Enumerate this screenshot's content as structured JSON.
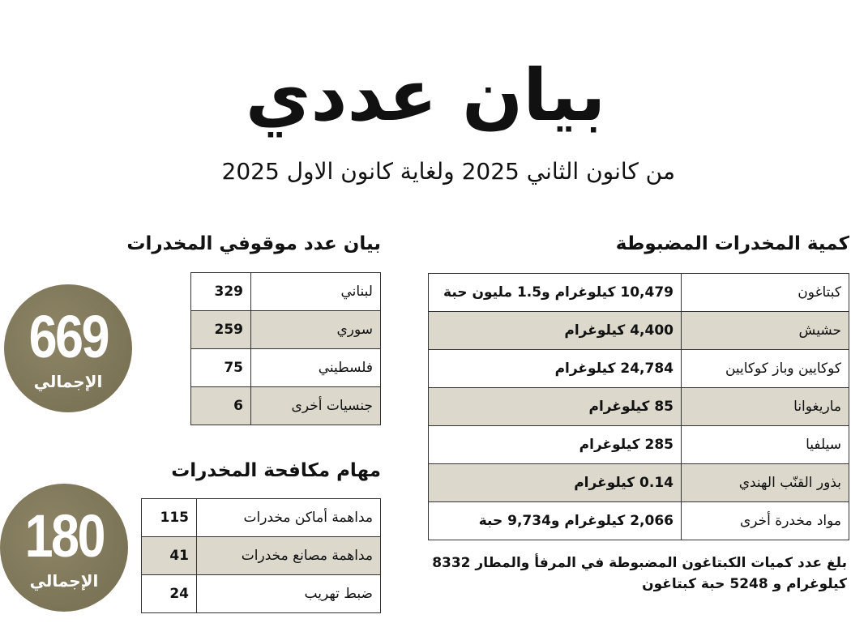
{
  "title": "بيان عددي",
  "subtitle": "من كانون الثاني 2025  ولغاية كانون الاول 2025",
  "colors": {
    "circle": "#7f7759",
    "row_shade": "#dcd9cc"
  },
  "seized": {
    "heading": "كمية المخدرات المضبوطة",
    "rows": [
      {
        "label": "كبتاغون",
        "value": "10,479 كيلوغرام و1.5 مليون حبة"
      },
      {
        "label": "حشيش",
        "value": "4,400 كيلوغرام"
      },
      {
        "label": "كوكايين وباز كوكايين",
        "value": "24,784 كيلوغرام"
      },
      {
        "label": "ماريغوانا",
        "value": "85 كيلوغرام"
      },
      {
        "label": "سيلفيا",
        "value": "285 كيلوغرام"
      },
      {
        "label": "بذور القنّب الهندي",
        "value": "0.14 كيلوغرام"
      },
      {
        "label": "مواد مخدرة أخرى",
        "value": "2,066 كيلوغرام و9,734 حبة"
      }
    ],
    "note": "بلغ عدد كميات الكبتاغون المضبوطة في المرفأ والمطار 8332 كيلوغرام و 5248 حبة كبتاغون"
  },
  "detainees": {
    "heading": "بيان عدد موقوفي المخدرات",
    "rows": [
      {
        "label": "لبناني",
        "value": "329"
      },
      {
        "label": "سوري",
        "value": "259"
      },
      {
        "label": "فلسطيني",
        "value": "75"
      },
      {
        "label": "جنسيات أخرى",
        "value": "6"
      }
    ],
    "total": "669",
    "total_label": "الإجمالي"
  },
  "missions": {
    "heading": "مهام مكافحة المخدرات",
    "rows": [
      {
        "label": "مداهمة أماكن مخدرات",
        "value": "115"
      },
      {
        "label": "مداهمة مصانع مخدرات",
        "value": "41"
      },
      {
        "label": "ضبط تهريب",
        "value": "24"
      }
    ],
    "total": "180",
    "total_label": "الإجمالي"
  }
}
